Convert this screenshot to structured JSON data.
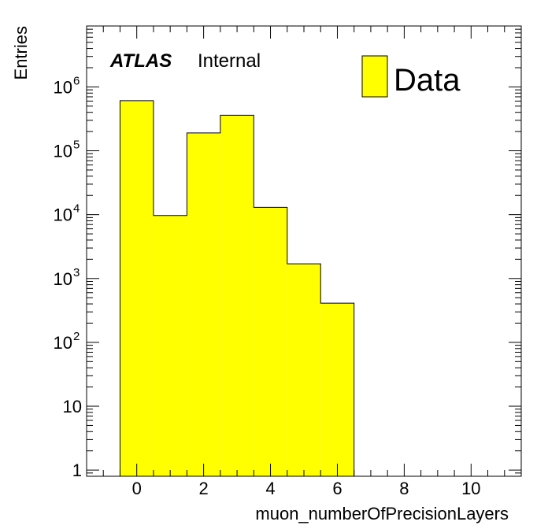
{
  "chart_data": {
    "type": "histogram",
    "title": "",
    "xlabel": "muon_numberOfPrecisionLayers",
    "ylabel": "Entries",
    "ylog": true,
    "xlim": [
      -1.5,
      11.5
    ],
    "ylim": [
      0.8,
      9000000
    ],
    "x_ticks": [
      0,
      2,
      4,
      6,
      8,
      10
    ],
    "y_ticks": [
      {
        "value": 1,
        "base": "1",
        "exp": ""
      },
      {
        "value": 10,
        "base": "10",
        "exp": ""
      },
      {
        "value": 100,
        "base": "10",
        "exp": "2"
      },
      {
        "value": 1000,
        "base": "10",
        "exp": "3"
      },
      {
        "value": 10000,
        "base": "10",
        "exp": "4"
      },
      {
        "value": 100000,
        "base": "10",
        "exp": "5"
      },
      {
        "value": 1000000,
        "base": "10",
        "exp": "6"
      }
    ],
    "bins": [
      {
        "low": -0.5,
        "high": 0.5,
        "value": 610000
      },
      {
        "low": 0.5,
        "high": 1.5,
        "value": 9700
      },
      {
        "low": 1.5,
        "high": 2.5,
        "value": 190000
      },
      {
        "low": 2.5,
        "high": 3.5,
        "value": 360000
      },
      {
        "low": 3.5,
        "high": 4.5,
        "value": 13000
      },
      {
        "low": 4.5,
        "high": 5.5,
        "value": 1700
      },
      {
        "low": 5.5,
        "high": 6.5,
        "value": 410
      }
    ],
    "fill_color": "#ffff00",
    "line_color": "#000000",
    "legend": {
      "label": "Data",
      "position": "top-right"
    },
    "grid": false
  },
  "labels": {
    "atlas": "ATLAS",
    "internal": "Internal"
  }
}
